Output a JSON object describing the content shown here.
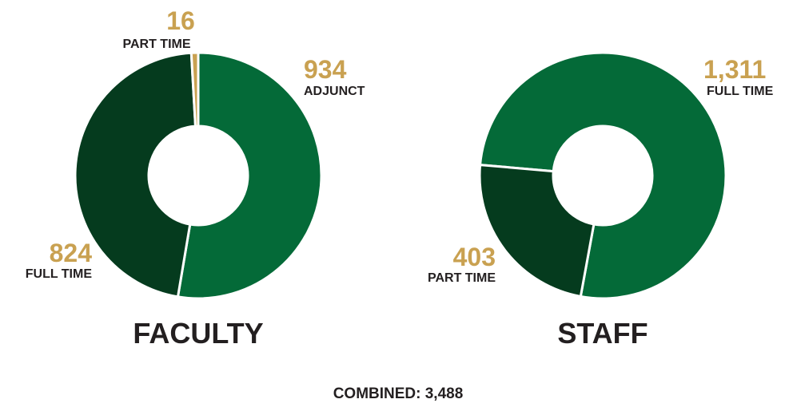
{
  "chart_data": [
    {
      "type": "pie",
      "donut": true,
      "title": "FACULTY",
      "slices": [
        {
          "label": "ADJUNCT",
          "value": 934,
          "display": "934",
          "color": "#046A38"
        },
        {
          "label": "FULL TIME",
          "value": 824,
          "display": "824",
          "color": "#053B1E"
        },
        {
          "label": "PART TIME",
          "value": 16,
          "display": "16",
          "color": "#C9A151"
        }
      ]
    },
    {
      "type": "pie",
      "donut": true,
      "title": "STAFF",
      "slices": [
        {
          "label": "FULL TIME",
          "value": 1311,
          "display": "1,311",
          "color": "#046A38"
        },
        {
          "label": "PART TIME",
          "value": 403,
          "display": "403",
          "color": "#053B1E"
        }
      ]
    }
  ],
  "footer": {
    "combined": "COMBINED: 3,488"
  },
  "colors": {
    "number": "#C9A151",
    "text": "#231F20"
  }
}
